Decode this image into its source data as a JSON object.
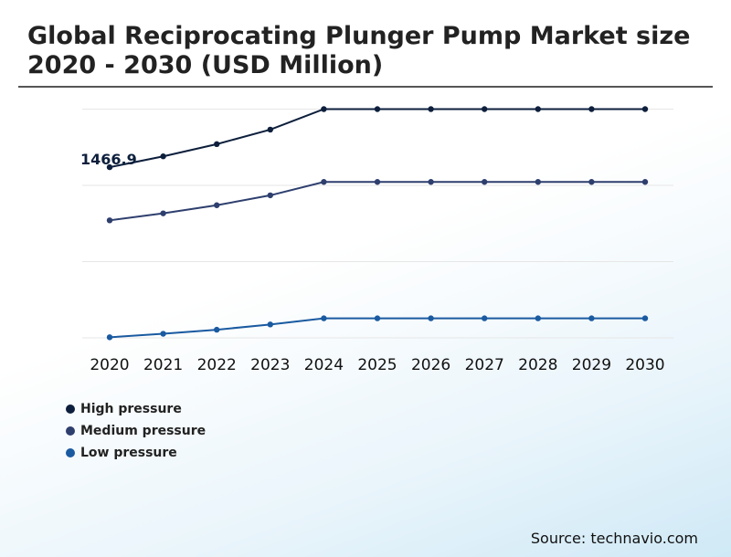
{
  "title": "Global Reciprocating Plunger Pump Market size 2020 - 2030 (USD Million)",
  "source": "Source: technavio.com",
  "chart_data": {
    "type": "line",
    "title": "Global Reciprocating Plunger Pump Market size 2020 - 2030 (USD Million)",
    "x": [
      "2020",
      "2021",
      "2022",
      "2023",
      "2024",
      "2025",
      "2026",
      "2027",
      "2028",
      "2029",
      "2030"
    ],
    "ylim": [
      0,
      1966
    ],
    "grid": true,
    "legend_position": "bottom-left",
    "annotation": "1466.9",
    "series": [
      {
        "name": "High pressure",
        "color": "#0d1f3c",
        "values": [
          1466.9,
          1560,
          1665,
          1790,
          1966,
          1966,
          1966,
          1966,
          1966,
          1966,
          1966
        ]
      },
      {
        "name": "Medium pressure",
        "color": "#2e3f6e",
        "values": [
          1010,
          1070,
          1140,
          1225,
          1340,
          1340,
          1340,
          1340,
          1340,
          1340,
          1340
        ]
      },
      {
        "name": "Low pressure",
        "color": "#1a5aa0",
        "values": [
          5,
          35,
          70,
          115,
          168,
          168,
          168,
          168,
          168,
          168,
          168
        ]
      }
    ]
  }
}
